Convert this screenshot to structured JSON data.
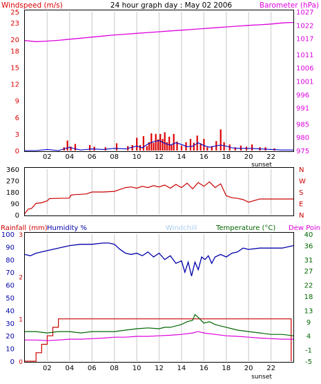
{
  "header": {
    "title": "24 hour graph day : May 02 2006",
    "left_label": "Windspeed (m/s)",
    "right_label": "Barometer (hPa)"
  },
  "sunset_label": "sunset",
  "colors": {
    "wind": "#dd0000",
    "gust": "#0000cc",
    "barometer": "#dd00dd",
    "direction": "#cc0000",
    "rain": "#cc0000",
    "humidity": "#0000aa",
    "windchill": "#aaccee",
    "temperature": "#006600",
    "dewpoint": "#dd00dd"
  },
  "chart_data": [
    {
      "type": "line",
      "title": "24 hour graph day : May 02 2006",
      "x_ticks": [
        "02",
        "04",
        "06",
        "08",
        "10",
        "12",
        "14",
        "16",
        "18",
        "20",
        "22"
      ],
      "xlim": [
        0,
        24
      ],
      "left_axis": {
        "label": "Windspeed (m/s)",
        "ylim": [
          0,
          25
        ],
        "ticks": [
          0,
          3,
          6,
          9,
          12,
          15,
          18,
          20,
          23,
          25
        ]
      },
      "right_axis": {
        "label": "Barometer (hPa)",
        "ylim": [
          975,
          1027
        ],
        "ticks": [
          975,
          980,
          985,
          991,
          996,
          1001,
          1006,
          1011,
          1017,
          1022,
          1027
        ]
      },
      "series": [
        {
          "name": "Barometer (hPa)",
          "axis": "right",
          "x": [
            0,
            1,
            2,
            3,
            4,
            5,
            6,
            7,
            8,
            9,
            10,
            11,
            12,
            13,
            14,
            15,
            16,
            17,
            18,
            19,
            20,
            21,
            22,
            23,
            24
          ],
          "y": [
            1016.2,
            1015.8,
            1016.0,
            1016.3,
            1016.7,
            1017.1,
            1017.5,
            1017.9,
            1018.3,
            1018.6,
            1018.9,
            1019.2,
            1019.5,
            1019.8,
            1020.1,
            1020.4,
            1020.7,
            1021.0,
            1021.3,
            1021.6,
            1021.9,
            1022.1,
            1022.4,
            1022.8,
            1023.0
          ]
        },
        {
          "name": "Windspeed (m/s)",
          "axis": "left",
          "x": [
            3.5,
            3.8,
            4.1,
            4.5,
            5.8,
            6.2,
            7.2,
            8.2,
            9.2,
            9.6,
            10.0,
            10.3,
            10.6,
            10.9,
            11.1,
            11.3,
            11.5,
            11.7,
            11.9,
            12.1,
            12.3,
            12.5,
            12.7,
            12.9,
            13.1,
            13.3,
            13.6,
            14.0,
            14.4,
            14.8,
            15.1,
            15.4,
            15.7,
            16.0,
            16.3,
            16.7,
            17.1,
            17.5,
            17.8,
            18.3,
            18.8,
            19.3,
            19.8,
            20.3,
            21.0,
            21.5,
            22.3
          ],
          "y": [
            0.6,
            1.8,
            0.7,
            1.2,
            1.0,
            0.7,
            0.6,
            1.3,
            0.8,
            1.0,
            2.3,
            1.0,
            2.6,
            0.8,
            1.5,
            3.1,
            1.4,
            3.0,
            2.0,
            3.0,
            2.1,
            3.3,
            1.5,
            2.5,
            1.0,
            3.0,
            1.6,
            0.9,
            1.5,
            2.1,
            1.4,
            2.7,
            1.3,
            2.1,
            0.6,
            0.8,
            1.7,
            3.8,
            1.5,
            1.1,
            0.6,
            0.9,
            0.7,
            1.1,
            0.6,
            0.6,
            0.4
          ]
        },
        {
          "name": "Wind gust",
          "axis": "left",
          "x": [
            0,
            1,
            2,
            3,
            3.5,
            4,
            4.5,
            5,
            6,
            7,
            8,
            9,
            10,
            10.5,
            11,
            11.5,
            12,
            12.5,
            13,
            13.5,
            14,
            14.5,
            15,
            15.5,
            16,
            16.5,
            17,
            17.5,
            18,
            18.5,
            19,
            20,
            21,
            22,
            23,
            24
          ],
          "y": [
            0,
            0,
            0.2,
            0,
            0.3,
            0.6,
            0.3,
            0.1,
            0.3,
            0.2,
            0.4,
            0.3,
            0.8,
            0.5,
            1.2,
            1.6,
            1.8,
            1.3,
            1.0,
            1.4,
            1.1,
            0.7,
            0.8,
            1.4,
            0.9,
            0.6,
            0.8,
            1.0,
            0.8,
            0.5,
            0.4,
            0.4,
            0.3,
            0.2,
            0.1,
            0.1
          ]
        }
      ]
    },
    {
      "type": "line",
      "left_axis": {
        "ylim": [
          0,
          360
        ],
        "ticks": [
          0,
          90,
          180,
          270,
          360
        ]
      },
      "right_axis": {
        "ticks": [
          "N",
          "W",
          "S",
          "E",
          "N"
        ]
      },
      "xlim": [
        0,
        24
      ],
      "series": [
        {
          "name": "Wind direction",
          "axis": "left",
          "x": [
            0,
            0.3,
            0.6,
            1.0,
            1.5,
            2.0,
            2.2,
            3.0,
            4.0,
            4.1,
            4.5,
            5.0,
            5.5,
            6.0,
            7.0,
            8.0,
            8.5,
            9.0,
            9.5,
            10.0,
            10.5,
            11.0,
            11.5,
            12.0,
            12.5,
            13.0,
            13.5,
            14.0,
            14.5,
            15.0,
            15.5,
            16.0,
            16.5,
            17.0,
            17.5,
            18.0,
            18.5,
            19.0,
            19.5,
            20.0,
            21.0,
            22.0,
            23.0,
            24.0
          ],
          "y": [
            10,
            45,
            50,
            90,
            95,
            110,
            128,
            130,
            132,
            155,
            160,
            162,
            165,
            180,
            180,
            185,
            200,
            215,
            220,
            210,
            225,
            215,
            230,
            220,
            235,
            210,
            240,
            215,
            250,
            205,
            255,
            225,
            260,
            215,
            245,
            150,
            135,
            130,
            120,
            100,
            125,
            125,
            125,
            125
          ]
        }
      ]
    },
    {
      "type": "line",
      "xlim": [
        0,
        24
      ],
      "x_ticks": [
        "02",
        "04",
        "06",
        "08",
        "10",
        "12",
        "14",
        "16",
        "18",
        "20",
        "22"
      ],
      "axis_labels": [
        "Rainfall (mm)",
        "Humidity %",
        "Windchill",
        "Temperature (°C)",
        "Dew Point"
      ],
      "humidity_axis": {
        "ylim": [
          0,
          100
        ],
        "ticks": [
          0,
          10,
          20,
          30,
          40,
          50,
          60,
          70,
          80,
          90,
          100
        ]
      },
      "rain_axis": {
        "ticks": [
          0,
          1,
          2,
          3
        ]
      },
      "temperature_axis": {
        "ylim": [
          -5,
          40
        ],
        "ticks": [
          -5,
          -1,
          4,
          9,
          13,
          18,
          22,
          27,
          31,
          36,
          40
        ]
      },
      "series": [
        {
          "name": "Humidity %",
          "axis": "humidity",
          "x": [
            0,
            0.5,
            1.0,
            1.5,
            2.0,
            3.0,
            4.0,
            5.0,
            6.0,
            7.0,
            7.5,
            8.0,
            8.5,
            9.0,
            9.5,
            10.0,
            10.5,
            11.0,
            11.5,
            12.0,
            12.5,
            13.0,
            13.5,
            14.0,
            14.3,
            14.6,
            14.9,
            15.2,
            15.5,
            15.8,
            16.1,
            16.4,
            16.7,
            17.0,
            17.5,
            18.0,
            18.5,
            19.0,
            19.5,
            20.0,
            21.0,
            22.0,
            23.0,
            24.0
          ],
          "y": [
            84,
            83,
            85,
            86,
            87,
            89,
            91,
            92,
            92,
            93,
            93,
            92,
            88,
            85,
            84,
            85,
            83,
            86,
            82,
            85,
            80,
            83,
            77,
            79,
            70,
            78,
            67,
            78,
            72,
            82,
            80,
            83,
            77,
            82,
            84,
            82,
            85,
            86,
            89,
            88,
            89,
            89,
            89,
            91
          ]
        },
        {
          "name": "Temperature (°C)",
          "axis": "temperature",
          "x": [
            0,
            1,
            2,
            3,
            4,
            5,
            6,
            7,
            8,
            9,
            10,
            11,
            12,
            12.5,
            13,
            13.5,
            14,
            14.5,
            15,
            15.2,
            15.5,
            16,
            16.5,
            17,
            17.5,
            18,
            18.5,
            19,
            20,
            21,
            22,
            23,
            24
          ],
          "y": [
            5.5,
            5.5,
            5.0,
            5.5,
            5.5,
            5.0,
            5.5,
            5.5,
            5.5,
            6.0,
            6.5,
            6.8,
            6.5,
            7.0,
            7.0,
            7.5,
            8.0,
            9.0,
            9.5,
            11.5,
            10.5,
            8.5,
            9.0,
            8.0,
            7.5,
            7.0,
            6.5,
            6.0,
            5.5,
            5.0,
            4.5,
            4.5,
            4.0
          ]
        },
        {
          "name": "Dew Point",
          "axis": "temperature",
          "x": [
            0,
            1,
            2,
            3,
            4,
            5,
            6,
            7,
            8,
            9,
            10,
            11,
            12,
            13,
            14,
            15,
            15.5,
            16,
            17,
            18,
            19,
            20,
            21,
            22,
            23,
            24
          ],
          "y": [
            2.5,
            2.5,
            2.3,
            2.5,
            2.8,
            2.8,
            3.0,
            3.2,
            3.5,
            3.5,
            3.8,
            3.8,
            4.0,
            4.2,
            4.5,
            5.0,
            5.5,
            5.0,
            4.5,
            4.0,
            3.8,
            3.5,
            3.2,
            3.0,
            2.8,
            2.8
          ]
        },
        {
          "name": "Rainfall (mm)",
          "axis": "rain",
          "x": [
            0,
            1.0,
            1.0,
            1.5,
            1.5,
            2.0,
            2.0,
            2.5,
            2.5,
            3.0,
            3.0,
            4.0,
            4.0,
            23.8,
            23.8
          ],
          "y": [
            0,
            0,
            0.2,
            0.2,
            0.4,
            0.4,
            0.6,
            0.6,
            0.8,
            0.8,
            1.0,
            1.0,
            1.0,
            1.0,
            0
          ]
        }
      ]
    }
  ]
}
